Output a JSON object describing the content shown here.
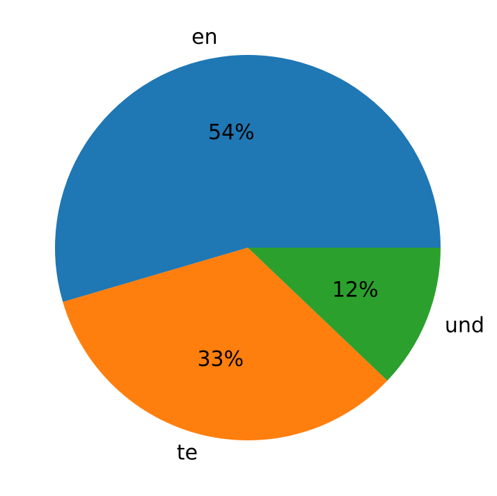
{
  "chart_data": {
    "type": "pie",
    "categories": [
      "en",
      "te",
      "und"
    ],
    "values": [
      54,
      33,
      12
    ],
    "value_labels": [
      "54%",
      "33%",
      "12%"
    ],
    "colors": [
      "#1f77b4",
      "#ff7f0e",
      "#2ca02c"
    ]
  }
}
